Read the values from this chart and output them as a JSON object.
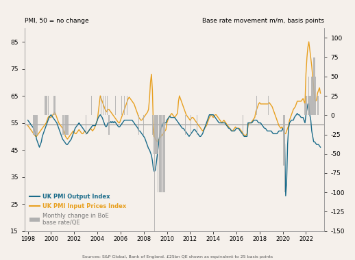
{
  "title_left": "PMI, 50 = no change",
  "title_right": "Base rate movement m/m, basis points",
  "source": "Sources: S&P Global, Bank of England. £25bn QE shown as equivalent to 25 basis points",
  "ylim_left": [
    15,
    90
  ],
  "ylim_right": [
    -150,
    112.5
  ],
  "yticks_left": [
    15,
    25,
    35,
    45,
    55,
    65,
    75,
    85
  ],
  "yticks_right": [
    -150,
    -125,
    -100,
    -75,
    -50,
    -25,
    0,
    25,
    50,
    75,
    100
  ],
  "xticks": [
    1998,
    2000,
    2002,
    2004,
    2006,
    2008,
    2010,
    2012,
    2014,
    2016,
    2018,
    2020,
    2022
  ],
  "color_output": "#1a6b8a",
  "color_input": "#e8a020",
  "color_bars": "#b0b0b0",
  "color_hline": "#888888",
  "hline_y": 54.5,
  "background_color": "#f5f0eb",
  "pmi_output_dates": [
    1998.0,
    1998.083,
    1998.167,
    1998.25,
    1998.333,
    1998.417,
    1998.5,
    1998.583,
    1998.667,
    1998.75,
    1998.833,
    1998.917,
    1999.0,
    1999.083,
    1999.167,
    1999.25,
    1999.333,
    1999.417,
    1999.5,
    1999.583,
    1999.667,
    1999.75,
    1999.833,
    1999.917,
    2000.0,
    2000.083,
    2000.167,
    2000.25,
    2000.333,
    2000.417,
    2000.5,
    2000.583,
    2000.667,
    2000.75,
    2000.833,
    2000.917,
    2001.0,
    2001.083,
    2001.167,
    2001.25,
    2001.333,
    2001.417,
    2001.5,
    2001.583,
    2001.667,
    2001.75,
    2001.833,
    2001.917,
    2002.0,
    2002.083,
    2002.167,
    2002.25,
    2002.333,
    2002.417,
    2002.5,
    2002.583,
    2002.667,
    2002.75,
    2002.833,
    2002.917,
    2003.0,
    2003.083,
    2003.167,
    2003.25,
    2003.333,
    2003.417,
    2003.5,
    2003.583,
    2003.667,
    2003.75,
    2003.833,
    2003.917,
    2004.0,
    2004.083,
    2004.167,
    2004.25,
    2004.333,
    2004.417,
    2004.5,
    2004.583,
    2004.667,
    2004.75,
    2004.833,
    2004.917,
    2005.0,
    2005.083,
    2005.167,
    2005.25,
    2005.333,
    2005.417,
    2005.5,
    2005.583,
    2005.667,
    2005.75,
    2005.833,
    2005.917,
    2006.0,
    2006.083,
    2006.167,
    2006.25,
    2006.333,
    2006.417,
    2006.5,
    2006.583,
    2006.667,
    2006.75,
    2006.833,
    2006.917,
    2007.0,
    2007.083,
    2007.167,
    2007.25,
    2007.333,
    2007.417,
    2007.5,
    2007.583,
    2007.667,
    2007.75,
    2007.833,
    2007.917,
    2008.0,
    2008.083,
    2008.167,
    2008.25,
    2008.333,
    2008.417,
    2008.5,
    2008.583,
    2008.667,
    2008.75,
    2008.833,
    2008.917,
    2009.0,
    2009.083,
    2009.167,
    2009.25,
    2009.333,
    2009.417,
    2009.5,
    2009.583,
    2009.667,
    2009.75,
    2009.833,
    2009.917,
    2010.0,
    2010.083,
    2010.167,
    2010.25,
    2010.333,
    2010.417,
    2010.5,
    2010.583,
    2010.667,
    2010.75,
    2010.833,
    2010.917,
    2011.0,
    2011.083,
    2011.167,
    2011.25,
    2011.333,
    2011.417,
    2011.5,
    2011.583,
    2011.667,
    2011.75,
    2011.833,
    2011.917,
    2012.0,
    2012.083,
    2012.167,
    2012.25,
    2012.333,
    2012.417,
    2012.5,
    2012.583,
    2012.667,
    2012.75,
    2012.833,
    2012.917,
    2013.0,
    2013.083,
    2013.167,
    2013.25,
    2013.333,
    2013.417,
    2013.5,
    2013.583,
    2013.667,
    2013.75,
    2013.833,
    2013.917,
    2014.0,
    2014.083,
    2014.167,
    2014.25,
    2014.333,
    2014.417,
    2014.5,
    2014.583,
    2014.667,
    2014.75,
    2014.833,
    2014.917,
    2015.0,
    2015.083,
    2015.167,
    2015.25,
    2015.333,
    2015.417,
    2015.5,
    2015.583,
    2015.667,
    2015.75,
    2015.833,
    2015.917,
    2016.0,
    2016.083,
    2016.167,
    2016.25,
    2016.333,
    2016.417,
    2016.5,
    2016.583,
    2016.667,
    2016.75,
    2016.833,
    2016.917,
    2017.0,
    2017.083,
    2017.167,
    2017.25,
    2017.333,
    2017.417,
    2017.5,
    2017.583,
    2017.667,
    2017.75,
    2017.833,
    2017.917,
    2018.0,
    2018.083,
    2018.167,
    2018.25,
    2018.333,
    2018.417,
    2018.5,
    2018.583,
    2018.667,
    2018.75,
    2018.833,
    2018.917,
    2019.0,
    2019.083,
    2019.167,
    2019.25,
    2019.333,
    2019.417,
    2019.5,
    2019.583,
    2019.667,
    2019.75,
    2019.833,
    2019.917,
    2020.0,
    2020.083,
    2020.167,
    2020.25,
    2020.333,
    2020.417,
    2020.5,
    2020.583,
    2020.667,
    2020.75,
    2020.833,
    2020.917,
    2021.0,
    2021.083,
    2021.167,
    2021.25,
    2021.333,
    2021.417,
    2021.5,
    2021.583,
    2021.667,
    2021.75,
    2021.833,
    2021.917,
    2022.0,
    2022.083,
    2022.167,
    2022.25,
    2022.333,
    2022.417,
    2022.5,
    2022.583,
    2022.667,
    2022.75,
    2022.833,
    2022.917,
    2023.0,
    2023.083,
    2023.167,
    2023.25
  ],
  "pmi_output_values": [
    56.0,
    55.5,
    55.0,
    54.5,
    54.0,
    53.5,
    53.0,
    52.0,
    51.0,
    49.0,
    48.0,
    47.0,
    46.0,
    47.0,
    48.0,
    50.0,
    51.0,
    52.0,
    53.0,
    54.0,
    55.0,
    56.0,
    57.0,
    57.5,
    58.0,
    57.5,
    57.0,
    56.5,
    56.0,
    55.5,
    55.0,
    54.0,
    53.0,
    52.0,
    51.0,
    50.0,
    49.0,
    48.5,
    48.0,
    47.5,
    47.0,
    47.0,
    47.5,
    48.0,
    48.5,
    49.0,
    50.0,
    51.0,
    52.0,
    53.0,
    53.5,
    54.0,
    54.5,
    55.0,
    54.5,
    54.0,
    53.5,
    53.0,
    52.5,
    52.0,
    51.5,
    51.0,
    51.5,
    52.0,
    52.5,
    53.0,
    53.5,
    54.0,
    54.0,
    54.0,
    54.0,
    55.0,
    56.0,
    57.0,
    57.5,
    58.0,
    57.5,
    57.0,
    56.0,
    55.0,
    54.0,
    53.5,
    54.0,
    55.0,
    55.0,
    55.0,
    55.5,
    55.0,
    55.5,
    55.0,
    55.5,
    55.0,
    54.5,
    54.0,
    53.5,
    53.5,
    54.0,
    54.5,
    55.0,
    55.5,
    56.0,
    56.0,
    56.0,
    56.0,
    56.0,
    56.0,
    56.0,
    56.0,
    56.0,
    55.5,
    55.0,
    54.5,
    54.0,
    53.5,
    53.0,
    52.0,
    52.0,
    51.5,
    51.0,
    50.5,
    50.0,
    49.5,
    48.5,
    47.5,
    46.5,
    45.5,
    45.0,
    44.0,
    43.0,
    41.0,
    38.0,
    37.0,
    37.5,
    40.0,
    43.0,
    46.0,
    49.0,
    51.5,
    53.0,
    54.0,
    55.0,
    55.0,
    55.0,
    55.0,
    56.0,
    56.5,
    57.0,
    57.5,
    57.0,
    57.0,
    57.0,
    57.0,
    57.0,
    56.5,
    56.0,
    55.5,
    55.0,
    54.5,
    54.0,
    53.5,
    53.0,
    53.0,
    52.5,
    52.0,
    51.5,
    51.0,
    50.5,
    50.0,
    50.5,
    51.0,
    51.5,
    52.0,
    52.5,
    52.5,
    52.0,
    51.5,
    51.0,
    50.5,
    50.0,
    50.0,
    50.5,
    51.0,
    52.0,
    53.0,
    54.0,
    55.0,
    56.0,
    57.0,
    58.0,
    58.0,
    58.0,
    58.0,
    58.0,
    57.5,
    57.0,
    56.5,
    56.0,
    55.5,
    55.0,
    55.0,
    55.0,
    55.0,
    55.0,
    55.0,
    55.0,
    54.5,
    54.0,
    53.5,
    53.0,
    53.0,
    52.5,
    52.0,
    52.0,
    52.0,
    52.0,
    52.5,
    53.0,
    53.0,
    53.0,
    52.5,
    52.0,
    51.5,
    51.0,
    50.5,
    50.0,
    50.0,
    50.0,
    50.0,
    55.0,
    55.0,
    55.0,
    55.0,
    55.0,
    55.5,
    56.0,
    56.0,
    56.0,
    56.0,
    55.5,
    55.0,
    55.0,
    55.0,
    54.5,
    54.0,
    53.5,
    53.0,
    53.0,
    52.5,
    52.0,
    52.0,
    52.0,
    52.0,
    52.0,
    51.5,
    51.0,
    51.0,
    51.0,
    51.0,
    51.0,
    51.5,
    52.0,
    52.0,
    52.0,
    52.0,
    53.0,
    52.0,
    47.0,
    28.0,
    33.0,
    47.0,
    53.0,
    55.0,
    55.5,
    56.0,
    56.0,
    56.0,
    57.0,
    57.5,
    58.0,
    58.5,
    58.0,
    58.0,
    57.5,
    57.0,
    57.0,
    57.0,
    56.0,
    55.0,
    58.0,
    60.0,
    62.0,
    62.0,
    58.0,
    56.0,
    52.0,
    50.0,
    48.0,
    48.0,
    47.5,
    47.0,
    47.0,
    47.0,
    46.5,
    46.0
  ],
  "pmi_input_dates": [
    1998.0,
    1998.083,
    1998.167,
    1998.25,
    1998.333,
    1998.417,
    1998.5,
    1998.583,
    1998.667,
    1998.75,
    1998.833,
    1998.917,
    1999.0,
    1999.083,
    1999.167,
    1999.25,
    1999.333,
    1999.417,
    1999.5,
    1999.583,
    1999.667,
    1999.75,
    1999.833,
    1999.917,
    2000.0,
    2000.083,
    2000.167,
    2000.25,
    2000.333,
    2000.417,
    2000.5,
    2000.583,
    2000.667,
    2000.75,
    2000.833,
    2000.917,
    2001.0,
    2001.083,
    2001.167,
    2001.25,
    2001.333,
    2001.417,
    2001.5,
    2001.583,
    2001.667,
    2001.75,
    2001.833,
    2001.917,
    2002.0,
    2002.083,
    2002.167,
    2002.25,
    2002.333,
    2002.417,
    2002.5,
    2002.583,
    2002.667,
    2002.75,
    2002.833,
    2002.917,
    2003.0,
    2003.083,
    2003.167,
    2003.25,
    2003.333,
    2003.417,
    2003.5,
    2003.583,
    2003.667,
    2003.75,
    2003.833,
    2003.917,
    2004.0,
    2004.083,
    2004.167,
    2004.25,
    2004.333,
    2004.417,
    2004.5,
    2004.583,
    2004.667,
    2004.75,
    2004.833,
    2004.917,
    2005.0,
    2005.083,
    2005.167,
    2005.25,
    2005.333,
    2005.417,
    2005.5,
    2005.583,
    2005.667,
    2005.75,
    2005.833,
    2005.917,
    2006.0,
    2006.083,
    2006.167,
    2006.25,
    2006.333,
    2006.417,
    2006.5,
    2006.583,
    2006.667,
    2006.75,
    2006.833,
    2006.917,
    2007.0,
    2007.083,
    2007.167,
    2007.25,
    2007.333,
    2007.417,
    2007.5,
    2007.583,
    2007.667,
    2007.75,
    2007.833,
    2007.917,
    2008.0,
    2008.083,
    2008.167,
    2008.25,
    2008.333,
    2008.417,
    2008.5,
    2008.583,
    2008.667,
    2008.75,
    2008.833,
    2008.917,
    2009.0,
    2009.083,
    2009.167,
    2009.25,
    2009.333,
    2009.417,
    2009.5,
    2009.583,
    2009.667,
    2009.75,
    2009.833,
    2009.917,
    2010.0,
    2010.083,
    2010.167,
    2010.25,
    2010.333,
    2010.417,
    2010.5,
    2010.583,
    2010.667,
    2010.75,
    2010.833,
    2010.917,
    2011.0,
    2011.083,
    2011.167,
    2011.25,
    2011.333,
    2011.417,
    2011.5,
    2011.583,
    2011.667,
    2011.75,
    2011.833,
    2011.917,
    2012.0,
    2012.083,
    2012.167,
    2012.25,
    2012.333,
    2012.417,
    2012.5,
    2012.583,
    2012.667,
    2012.75,
    2012.833,
    2012.917,
    2013.0,
    2013.083,
    2013.167,
    2013.25,
    2013.333,
    2013.417,
    2013.5,
    2013.583,
    2013.667,
    2013.75,
    2013.833,
    2013.917,
    2014.0,
    2014.083,
    2014.167,
    2014.25,
    2014.333,
    2014.417,
    2014.5,
    2014.583,
    2014.667,
    2014.75,
    2014.833,
    2014.917,
    2015.0,
    2015.083,
    2015.167,
    2015.25,
    2015.333,
    2015.417,
    2015.5,
    2015.583,
    2015.667,
    2015.75,
    2015.833,
    2015.917,
    2016.0,
    2016.083,
    2016.167,
    2016.25,
    2016.333,
    2016.417,
    2016.5,
    2016.583,
    2016.667,
    2016.75,
    2016.833,
    2016.917,
    2017.0,
    2017.083,
    2017.167,
    2017.25,
    2017.333,
    2017.417,
    2017.5,
    2017.583,
    2017.667,
    2017.75,
    2017.833,
    2017.917,
    2018.0,
    2018.083,
    2018.167,
    2018.25,
    2018.333,
    2018.417,
    2018.5,
    2018.583,
    2018.667,
    2018.75,
    2018.833,
    2018.917,
    2019.0,
    2019.083,
    2019.167,
    2019.25,
    2019.333,
    2019.417,
    2019.5,
    2019.583,
    2019.667,
    2019.75,
    2019.833,
    2019.917,
    2020.0,
    2020.083,
    2020.167,
    2020.25,
    2020.333,
    2020.417,
    2020.5,
    2020.583,
    2020.667,
    2020.75,
    2020.833,
    2020.917,
    2021.0,
    2021.083,
    2021.167,
    2021.25,
    2021.333,
    2021.417,
    2021.5,
    2021.583,
    2021.667,
    2021.75,
    2021.833,
    2021.917,
    2022.0,
    2022.083,
    2022.167,
    2022.25,
    2022.333,
    2022.417,
    2022.5,
    2022.583,
    2022.667,
    2022.75,
    2022.833,
    2022.917,
    2023.0,
    2023.083,
    2023.167,
    2023.25
  ],
  "pmi_input_values": [
    54.0,
    53.5,
    53.0,
    52.5,
    52.0,
    51.5,
    51.0,
    50.5,
    50.0,
    50.0,
    50.5,
    51.0,
    51.5,
    52.0,
    52.5,
    53.0,
    53.5,
    54.0,
    54.5,
    55.0,
    56.0,
    57.0,
    57.5,
    57.0,
    57.0,
    57.5,
    58.0,
    58.5,
    59.0,
    58.0,
    57.0,
    56.0,
    55.0,
    54.5,
    54.0,
    53.5,
    53.0,
    52.0,
    51.0,
    50.0,
    49.5,
    49.0,
    49.5,
    50.0,
    50.5,
    51.0,
    51.5,
    52.0,
    51.5,
    51.0,
    51.0,
    51.5,
    52.0,
    52.5,
    52.0,
    51.5,
    51.0,
    51.0,
    51.5,
    52.0,
    51.5,
    51.0,
    51.5,
    52.0,
    52.5,
    53.0,
    52.5,
    52.0,
    52.5,
    53.0,
    54.0,
    55.0,
    56.0,
    59.0,
    62.0,
    65.0,
    64.0,
    63.0,
    62.0,
    61.0,
    60.0,
    59.5,
    59.0,
    60.0,
    60.0,
    59.5,
    59.0,
    58.5,
    58.0,
    57.5,
    57.0,
    56.5,
    56.0,
    55.5,
    55.0,
    55.0,
    56.0,
    57.0,
    58.0,
    59.0,
    60.0,
    61.0,
    62.0,
    63.0,
    64.0,
    64.5,
    64.0,
    63.5,
    63.0,
    62.5,
    62.0,
    61.0,
    60.0,
    59.0,
    58.0,
    57.0,
    56.5,
    56.0,
    56.0,
    56.5,
    57.0,
    57.5,
    58.0,
    58.5,
    59.0,
    60.0,
    64.0,
    70.0,
    73.0,
    67.0,
    54.0,
    50.0,
    49.0,
    48.5,
    48.0,
    48.5,
    49.0,
    49.5,
    50.0,
    50.5,
    51.0,
    51.5,
    52.0,
    52.5,
    55.0,
    56.0,
    57.0,
    57.5,
    58.0,
    58.5,
    58.0,
    57.5,
    57.0,
    57.5,
    58.0,
    58.5,
    63.0,
    65.0,
    64.0,
    63.0,
    62.0,
    61.0,
    60.0,
    59.0,
    58.0,
    57.5,
    57.0,
    56.5,
    56.0,
    56.5,
    57.0,
    57.0,
    56.5,
    56.0,
    55.5,
    55.0,
    54.5,
    54.0,
    53.5,
    53.0,
    52.5,
    52.0,
    52.5,
    53.0,
    53.5,
    54.0,
    55.0,
    56.0,
    57.0,
    57.5,
    58.0,
    57.5,
    57.0,
    57.5,
    58.0,
    58.0,
    57.5,
    57.0,
    56.5,
    56.0,
    55.5,
    55.0,
    55.5,
    56.0,
    55.5,
    55.0,
    54.5,
    54.0,
    53.5,
    53.0,
    52.5,
    52.0,
    52.0,
    52.5,
    53.0,
    53.5,
    53.0,
    53.0,
    53.0,
    53.0,
    52.5,
    52.0,
    51.5,
    51.0,
    50.5,
    50.0,
    50.5,
    51.0,
    54.0,
    55.0,
    55.0,
    55.0,
    55.5,
    56.0,
    56.5,
    57.0,
    59.0,
    60.0,
    61.0,
    62.0,
    62.5,
    62.0,
    62.0,
    62.0,
    62.0,
    62.0,
    62.0,
    62.0,
    62.0,
    62.0,
    62.5,
    62.0,
    61.5,
    61.0,
    60.0,
    59.0,
    58.0,
    57.0,
    56.0,
    55.0,
    54.0,
    53.5,
    53.0,
    53.5,
    53.0,
    52.5,
    51.0,
    51.0,
    52.0,
    53.0,
    54.0,
    56.0,
    57.0,
    58.0,
    59.0,
    60.0,
    60.5,
    61.0,
    62.0,
    63.0,
    63.0,
    63.0,
    63.0,
    63.0,
    63.5,
    64.0,
    63.0,
    62.0,
    73.0,
    79.0,
    83.0,
    85.0,
    82.0,
    79.0,
    76.0,
    72.0,
    68.0,
    64.0,
    63.0,
    63.5,
    66.0,
    67.0,
    68.0,
    66.0
  ],
  "boe_bar_dates": [
    1998.5,
    1998.583,
    1998.667,
    1998.75,
    1998.833,
    1999.5,
    1999.583,
    1999.667,
    1999.75,
    2000.25,
    2000.333,
    2001.0,
    2001.083,
    2001.167,
    2001.25,
    2001.333,
    2001.417,
    2001.5,
    2003.0,
    2003.5,
    2004.333,
    2004.5,
    2004.667,
    2004.833,
    2005.0,
    2005.583,
    2006.083,
    2006.333,
    2006.583,
    2007.583,
    2008.0,
    2008.75,
    2008.833,
    2008.917,
    2009.0,
    2009.083,
    2009.167,
    2009.25,
    2009.333,
    2009.417,
    2009.5,
    2009.667,
    2009.75,
    2009.833,
    2011.583,
    2012.083,
    2012.583,
    2016.583,
    2017.75,
    2018.75,
    2020.083,
    2020.167,
    2021.917,
    2022.0,
    2022.083,
    2022.167,
    2022.25,
    2022.333,
    2022.417,
    2022.5,
    2022.583,
    2022.667,
    2022.75,
    2022.833,
    2023.0,
    2023.083
  ],
  "boe_bar_values": [
    -25,
    -25,
    -25,
    -25,
    -25,
    25,
    25,
    25,
    25,
    25,
    25,
    -25,
    -25,
    -25,
    -25,
    -25,
    -25,
    -25,
    -25,
    25,
    25,
    25,
    25,
    25,
    -25,
    25,
    25,
    25,
    25,
    -25,
    -25,
    -25,
    -50,
    -150,
    -50,
    -50,
    -50,
    -100,
    -100,
    -100,
    -100,
    -100,
    -100,
    -100,
    -25,
    -25,
    -25,
    -25,
    25,
    25,
    -65,
    -100,
    15,
    25,
    25,
    25,
    50,
    25,
    25,
    50,
    50,
    75,
    75,
    50,
    25,
    25
  ]
}
